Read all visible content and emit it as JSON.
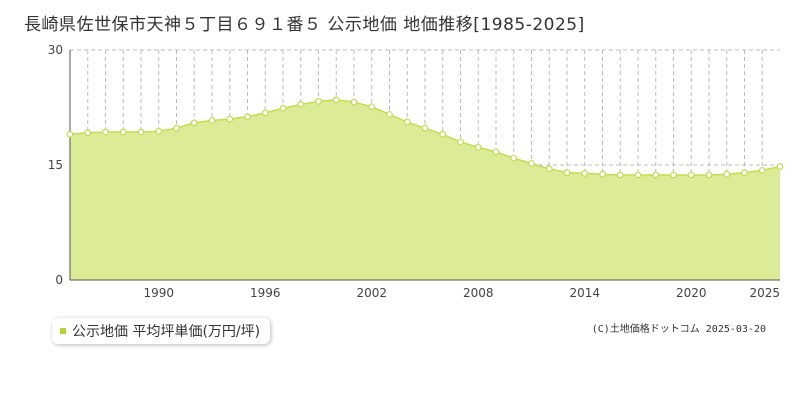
{
  "title": "長崎県佐世保市天神５丁目６９１番５ 公示地価 地価推移[1985-2025]",
  "legend": {
    "label": "公示地価 平均坪単価(万円/坪)",
    "color": "#b5d334"
  },
  "credit": "(C)土地価格ドットコム 2025-03-20",
  "colors": {
    "fill": "#dcec96",
    "line": "#c2dd4f",
    "point_fill": "#ffffff",
    "grid": "#bcbcbc"
  },
  "chart_data": {
    "type": "area",
    "xlabel": "",
    "ylabel": "",
    "xlim": [
      1985,
      2025
    ],
    "ylim": [
      0,
      30
    ],
    "y_ticks": [
      0,
      15,
      30
    ],
    "x_ticks": [
      1990,
      1996,
      2002,
      2008,
      2014,
      2020,
      2025
    ],
    "grid": true,
    "legend_position": "bottom-left",
    "series": [
      {
        "name": "公示地価 平均坪単価(万円/坪)",
        "x": [
          1985,
          1986,
          1987,
          1988,
          1989,
          1990,
          1991,
          1992,
          1993,
          1994,
          1995,
          1996,
          1997,
          1998,
          1999,
          2000,
          2001,
          2002,
          2003,
          2004,
          2005,
          2006,
          2007,
          2008,
          2009,
          2010,
          2011,
          2012,
          2013,
          2014,
          2015,
          2016,
          2017,
          2018,
          2019,
          2020,
          2021,
          2022,
          2023,
          2024,
          2025
        ],
        "values": [
          19.0,
          19.2,
          19.3,
          19.3,
          19.3,
          19.4,
          19.8,
          20.5,
          20.8,
          21.0,
          21.3,
          21.8,
          22.4,
          22.9,
          23.3,
          23.5,
          23.2,
          22.6,
          21.6,
          20.6,
          19.8,
          19.0,
          18.0,
          17.3,
          16.7,
          15.9,
          15.2,
          14.5,
          14.0,
          13.9,
          13.8,
          13.7,
          13.7,
          13.7,
          13.7,
          13.7,
          13.7,
          13.8,
          14.0,
          14.3,
          14.8
        ]
      }
    ]
  }
}
